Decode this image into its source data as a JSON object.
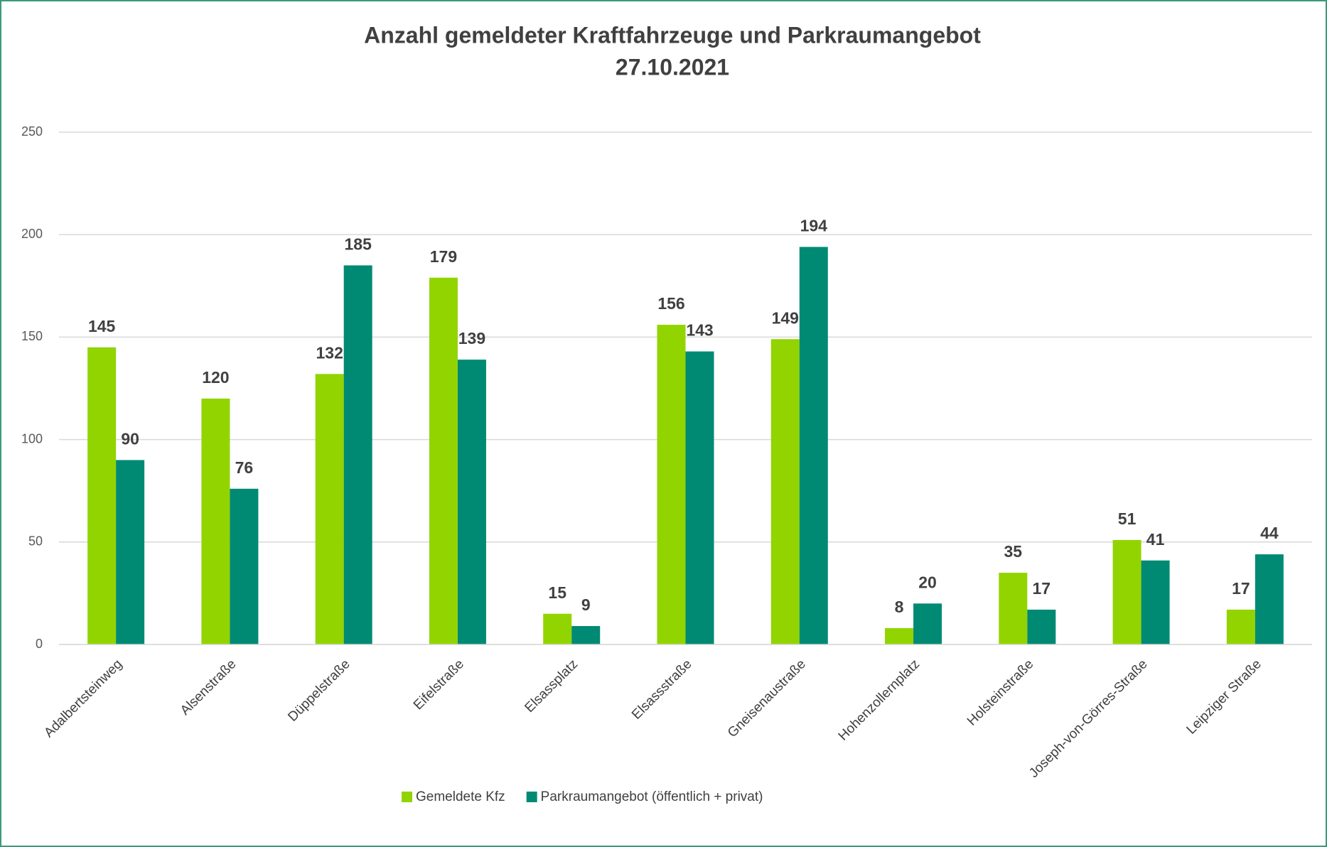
{
  "chart_data": {
    "type": "bar",
    "title": "Anzahl gemeldeter Kraftfahrzeuge und Parkraumangebot",
    "subtitle": "27.10.2021",
    "categories": [
      "Adalbertsteinweg",
      "Alsenstraße",
      "Düppelstraße",
      "Eifelstraße",
      "Elsassplatz",
      "Elsassstraße",
      "Gneisenaustraße",
      "Hohenzollernplatz",
      "Holsteinstraße",
      "Joseph-von-Görres-Straße",
      "Leipziger Straße"
    ],
    "series": [
      {
        "name": "Gemeldete Kfz",
        "color": "#92d400",
        "values": [
          145,
          120,
          132,
          179,
          15,
          156,
          149,
          8,
          35,
          51,
          17
        ]
      },
      {
        "name": "Parkraumangebot (öffentlich + privat)",
        "color": "#008a73",
        "values": [
          90,
          76,
          185,
          139,
          9,
          143,
          194,
          20,
          17,
          41,
          44
        ]
      }
    ],
    "ylim": [
      0,
      250
    ],
    "yticks": [
      0,
      50,
      100,
      150,
      200,
      250
    ],
    "grid": true,
    "legend": "bottom"
  }
}
